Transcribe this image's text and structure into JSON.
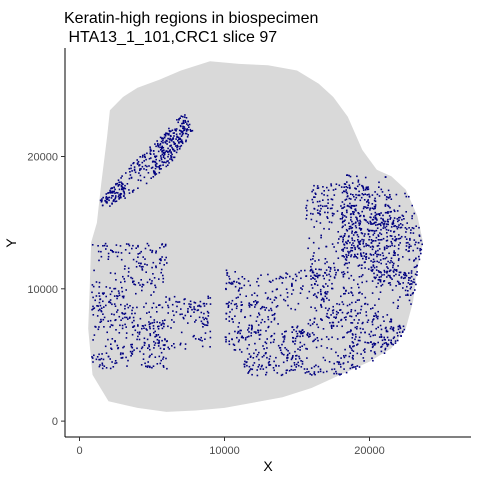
{
  "chart_data": {
    "type": "scatter",
    "title": "Keratin-high regions in biospecimen",
    "subtitle": " HTA13_1_101,CRC1 slice 97",
    "xlabel": "X",
    "ylabel": "Y",
    "xlim": [
      -1000,
      27000
    ],
    "ylim": [
      -1200,
      28200
    ],
    "xticks": [
      0,
      10000,
      20000
    ],
    "yticks": [
      0,
      10000,
      20000
    ],
    "grid": false,
    "legend": "none",
    "series": [
      {
        "role": "tissue-background",
        "color": "#d9d9d9",
        "outline": [
          [
            800,
            13500
          ],
          [
            1200,
            15000
          ],
          [
            1500,
            18000
          ],
          [
            1900,
            21500
          ],
          [
            2100,
            23500
          ],
          [
            3000,
            24500
          ],
          [
            4000,
            25200
          ],
          [
            5500,
            25800
          ],
          [
            7000,
            26500
          ],
          [
            9000,
            27200
          ],
          [
            11000,
            27000
          ],
          [
            13000,
            26900
          ],
          [
            15000,
            26500
          ],
          [
            16500,
            25500
          ],
          [
            17500,
            24500
          ],
          [
            18500,
            23000
          ],
          [
            19500,
            20500
          ],
          [
            20500,
            19000
          ],
          [
            21500,
            18500
          ],
          [
            22500,
            17500
          ],
          [
            23300,
            15500
          ],
          [
            23700,
            13500
          ],
          [
            23300,
            11500
          ],
          [
            23000,
            9000
          ],
          [
            22500,
            7000
          ],
          [
            21500,
            5500
          ],
          [
            20000,
            4500
          ],
          [
            18000,
            3500
          ],
          [
            16000,
            2500
          ],
          [
            14000,
            1800
          ],
          [
            12000,
            1400
          ],
          [
            10000,
            1000
          ],
          [
            8000,
            800
          ],
          [
            6000,
            700
          ],
          [
            4000,
            1000
          ],
          [
            2000,
            1500
          ],
          [
            900,
            3500
          ],
          [
            600,
            7000
          ],
          [
            700,
            10000
          ]
        ]
      },
      {
        "role": "keratin-high",
        "color": "#000080",
        "regions": [
          {
            "x": [
              1000,
              1600,
              3600,
              5500,
              7200,
              7800,
              6200,
              4000,
              2000,
              1000
            ],
            "y": [
              16500,
              17000,
              19500,
              21500,
              23500,
              22000,
              19500,
              17500,
              16200,
              16500
            ]
          },
          {
            "x": [
              800,
              6000,
              6000,
              800
            ],
            "y": [
              4000,
              4000,
              13500,
              13500
            ]
          },
          {
            "x": [
              5000,
              9000,
              9000,
              5000
            ],
            "y": [
              5500,
              5500,
              9500,
              9500
            ]
          },
          {
            "x": [
              10000,
              23500,
              23500,
              10000
            ],
            "y": [
              3500,
              3500,
              11500,
              11500
            ]
          },
          {
            "x": [
              15500,
              22000,
              22000,
              15500
            ],
            "y": [
              11000,
              11000,
              18000,
              18000
            ]
          },
          {
            "x": [
              18000,
              23700,
              23700,
              18000
            ],
            "y": [
              10500,
              10500,
              18700,
              18700
            ]
          }
        ]
      }
    ]
  }
}
